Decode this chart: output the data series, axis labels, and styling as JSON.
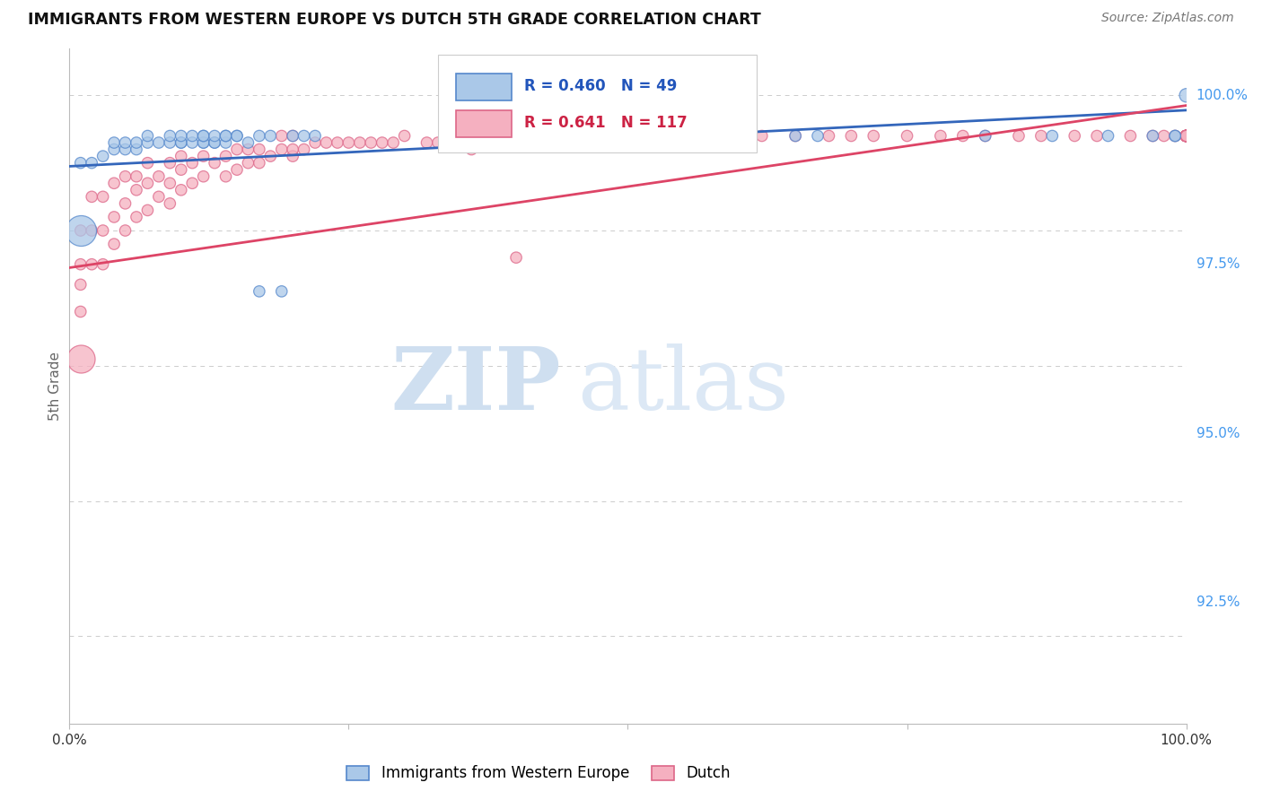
{
  "title": "IMMIGRANTS FROM WESTERN EUROPE VS DUTCH 5TH GRADE CORRELATION CHART",
  "source": "Source: ZipAtlas.com",
  "ylabel": "5th Grade",
  "yaxis_labels": [
    "100.0%",
    "97.5%",
    "95.0%",
    "92.5%"
  ],
  "yaxis_values": [
    1.0,
    0.975,
    0.95,
    0.925
  ],
  "xmin": 0.0,
  "xmax": 1.0,
  "ymin": 0.907,
  "ymax": 1.007,
  "legend_blue_r": "R = 0.460",
  "legend_blue_n": "N = 49",
  "legend_pink_r": "R = 0.641",
  "legend_pink_n": "N = 117",
  "legend_blue_label": "Immigrants from Western Europe",
  "legend_pink_label": "Dutch",
  "blue_face_color": "#aac8e8",
  "pink_face_color": "#f5b0c0",
  "blue_edge_color": "#5588cc",
  "pink_edge_color": "#dd6688",
  "blue_line_color": "#3366bb",
  "pink_line_color": "#dd4466",
  "watermark_color": "#d0e4f4",
  "background_color": "#ffffff",
  "grid_color": "#cccccc",
  "title_fontsize": 12.5,
  "source_fontsize": 10,
  "blue_trend_x0": 0.0,
  "blue_trend_x1": 1.0,
  "blue_trend_y0": 0.9895,
  "blue_trend_y1": 0.9978,
  "pink_trend_x0": 0.0,
  "pink_trend_x1": 1.0,
  "pink_trend_y0": 0.9745,
  "pink_trend_y1": 0.9985,
  "blue_x": [
    0.01,
    0.02,
    0.03,
    0.04,
    0.04,
    0.05,
    0.05,
    0.06,
    0.06,
    0.07,
    0.07,
    0.08,
    0.09,
    0.09,
    0.1,
    0.1,
    0.1,
    0.11,
    0.11,
    0.12,
    0.12,
    0.12,
    0.12,
    0.13,
    0.13,
    0.13,
    0.14,
    0.14,
    0.14,
    0.15,
    0.15,
    0.16,
    0.17,
    0.17,
    0.18,
    0.19,
    0.2,
    0.21,
    0.22,
    0.47,
    0.65,
    0.67,
    0.82,
    0.88,
    0.93,
    0.97,
    0.99,
    0.99,
    1.0
  ],
  "blue_y": [
    0.99,
    0.99,
    0.991,
    0.992,
    0.993,
    0.992,
    0.993,
    0.992,
    0.993,
    0.993,
    0.994,
    0.993,
    0.993,
    0.994,
    0.993,
    0.993,
    0.994,
    0.993,
    0.994,
    0.993,
    0.993,
    0.994,
    0.994,
    0.993,
    0.993,
    0.994,
    0.993,
    0.994,
    0.994,
    0.994,
    0.994,
    0.993,
    0.971,
    0.994,
    0.994,
    0.971,
    0.994,
    0.994,
    0.994,
    0.994,
    0.994,
    0.994,
    0.994,
    0.994,
    0.994,
    0.994,
    0.994,
    0.994,
    1.0
  ],
  "blue_s": [
    80,
    80,
    80,
    80,
    80,
    80,
    80,
    80,
    80,
    80,
    80,
    80,
    80,
    80,
    80,
    80,
    80,
    80,
    80,
    80,
    80,
    80,
    80,
    80,
    80,
    80,
    80,
    80,
    80,
    80,
    80,
    80,
    80,
    80,
    80,
    80,
    80,
    80,
    80,
    80,
    80,
    80,
    80,
    80,
    80,
    80,
    80,
    80,
    120
  ],
  "pink_x": [
    0.01,
    0.01,
    0.01,
    0.01,
    0.02,
    0.02,
    0.02,
    0.03,
    0.03,
    0.03,
    0.04,
    0.04,
    0.04,
    0.05,
    0.05,
    0.05,
    0.06,
    0.06,
    0.06,
    0.07,
    0.07,
    0.07,
    0.08,
    0.08,
    0.09,
    0.09,
    0.09,
    0.1,
    0.1,
    0.1,
    0.11,
    0.11,
    0.12,
    0.12,
    0.13,
    0.14,
    0.14,
    0.15,
    0.15,
    0.16,
    0.16,
    0.17,
    0.17,
    0.18,
    0.19,
    0.19,
    0.2,
    0.2,
    0.2,
    0.21,
    0.22,
    0.23,
    0.24,
    0.25,
    0.26,
    0.27,
    0.28,
    0.29,
    0.3,
    0.32,
    0.33,
    0.34,
    0.35,
    0.36,
    0.38,
    0.4,
    0.42,
    0.44,
    0.46,
    0.48,
    0.5,
    0.52,
    0.54,
    0.56,
    0.6,
    0.62,
    0.65,
    0.68,
    0.7,
    0.72,
    0.75,
    0.78,
    0.8,
    0.82,
    0.85,
    0.87,
    0.9,
    0.92,
    0.95,
    0.97,
    0.98,
    0.99,
    1.0,
    1.0,
    1.0,
    1.0,
    1.0,
    1.0,
    1.0,
    1.0,
    1.0,
    1.0,
    1.0,
    1.0,
    1.0,
    1.0,
    1.0,
    1.0,
    1.0,
    1.0,
    1.0,
    1.0,
    1.0,
    1.0,
    1.0,
    1.0,
    1.0
  ],
  "pink_y": [
    0.968,
    0.972,
    0.975,
    0.98,
    0.975,
    0.98,
    0.985,
    0.975,
    0.98,
    0.985,
    0.978,
    0.982,
    0.987,
    0.98,
    0.984,
    0.988,
    0.982,
    0.986,
    0.988,
    0.983,
    0.987,
    0.99,
    0.985,
    0.988,
    0.984,
    0.987,
    0.99,
    0.986,
    0.989,
    0.991,
    0.987,
    0.99,
    0.988,
    0.991,
    0.99,
    0.988,
    0.991,
    0.989,
    0.992,
    0.99,
    0.992,
    0.99,
    0.992,
    0.991,
    0.992,
    0.994,
    0.991,
    0.992,
    0.994,
    0.992,
    0.993,
    0.993,
    0.993,
    0.993,
    0.993,
    0.993,
    0.993,
    0.993,
    0.994,
    0.993,
    0.993,
    0.993,
    0.993,
    0.992,
    0.994,
    0.976,
    0.994,
    0.994,
    0.994,
    0.994,
    0.994,
    0.993,
    0.994,
    0.994,
    0.994,
    0.994,
    0.994,
    0.994,
    0.994,
    0.994,
    0.994,
    0.994,
    0.994,
    0.994,
    0.994,
    0.994,
    0.994,
    0.994,
    0.994,
    0.994,
    0.994,
    0.994,
    0.994,
    0.994,
    0.994,
    0.994,
    0.994,
    0.994,
    0.994,
    0.994,
    0.994,
    0.994,
    0.994,
    0.994,
    0.994,
    0.994,
    0.994,
    0.994,
    0.994,
    0.994,
    0.994,
    0.994,
    0.994,
    0.994,
    0.994,
    0.994,
    0.994
  ],
  "pink_s": [
    80,
    80,
    80,
    80,
    80,
    80,
    80,
    80,
    80,
    80,
    80,
    80,
    80,
    80,
    80,
    80,
    80,
    80,
    80,
    80,
    80,
    80,
    80,
    80,
    80,
    80,
    80,
    80,
    80,
    80,
    80,
    80,
    80,
    80,
    80,
    80,
    80,
    80,
    80,
    80,
    80,
    80,
    80,
    80,
    80,
    80,
    80,
    80,
    80,
    80,
    80,
    80,
    80,
    80,
    80,
    80,
    80,
    80,
    80,
    80,
    80,
    80,
    80,
    80,
    80,
    80,
    80,
    80,
    80,
    80,
    80,
    80,
    80,
    80,
    80,
    80,
    80,
    80,
    80,
    80,
    80,
    80,
    80,
    80,
    80,
    80,
    80,
    80,
    80,
    80,
    80,
    80,
    80,
    80,
    80,
    80,
    80,
    80,
    80,
    80,
    80,
    80,
    80,
    80,
    80,
    80,
    80,
    80,
    80,
    80,
    80,
    80,
    80,
    80,
    80,
    80,
    80
  ],
  "big_blue_x": [
    0.01
  ],
  "big_blue_y": [
    0.98
  ],
  "big_blue_s": [
    600
  ],
  "big_pink_x": [
    0.01
  ],
  "big_pink_y": [
    0.961
  ],
  "big_pink_s": [
    500
  ]
}
